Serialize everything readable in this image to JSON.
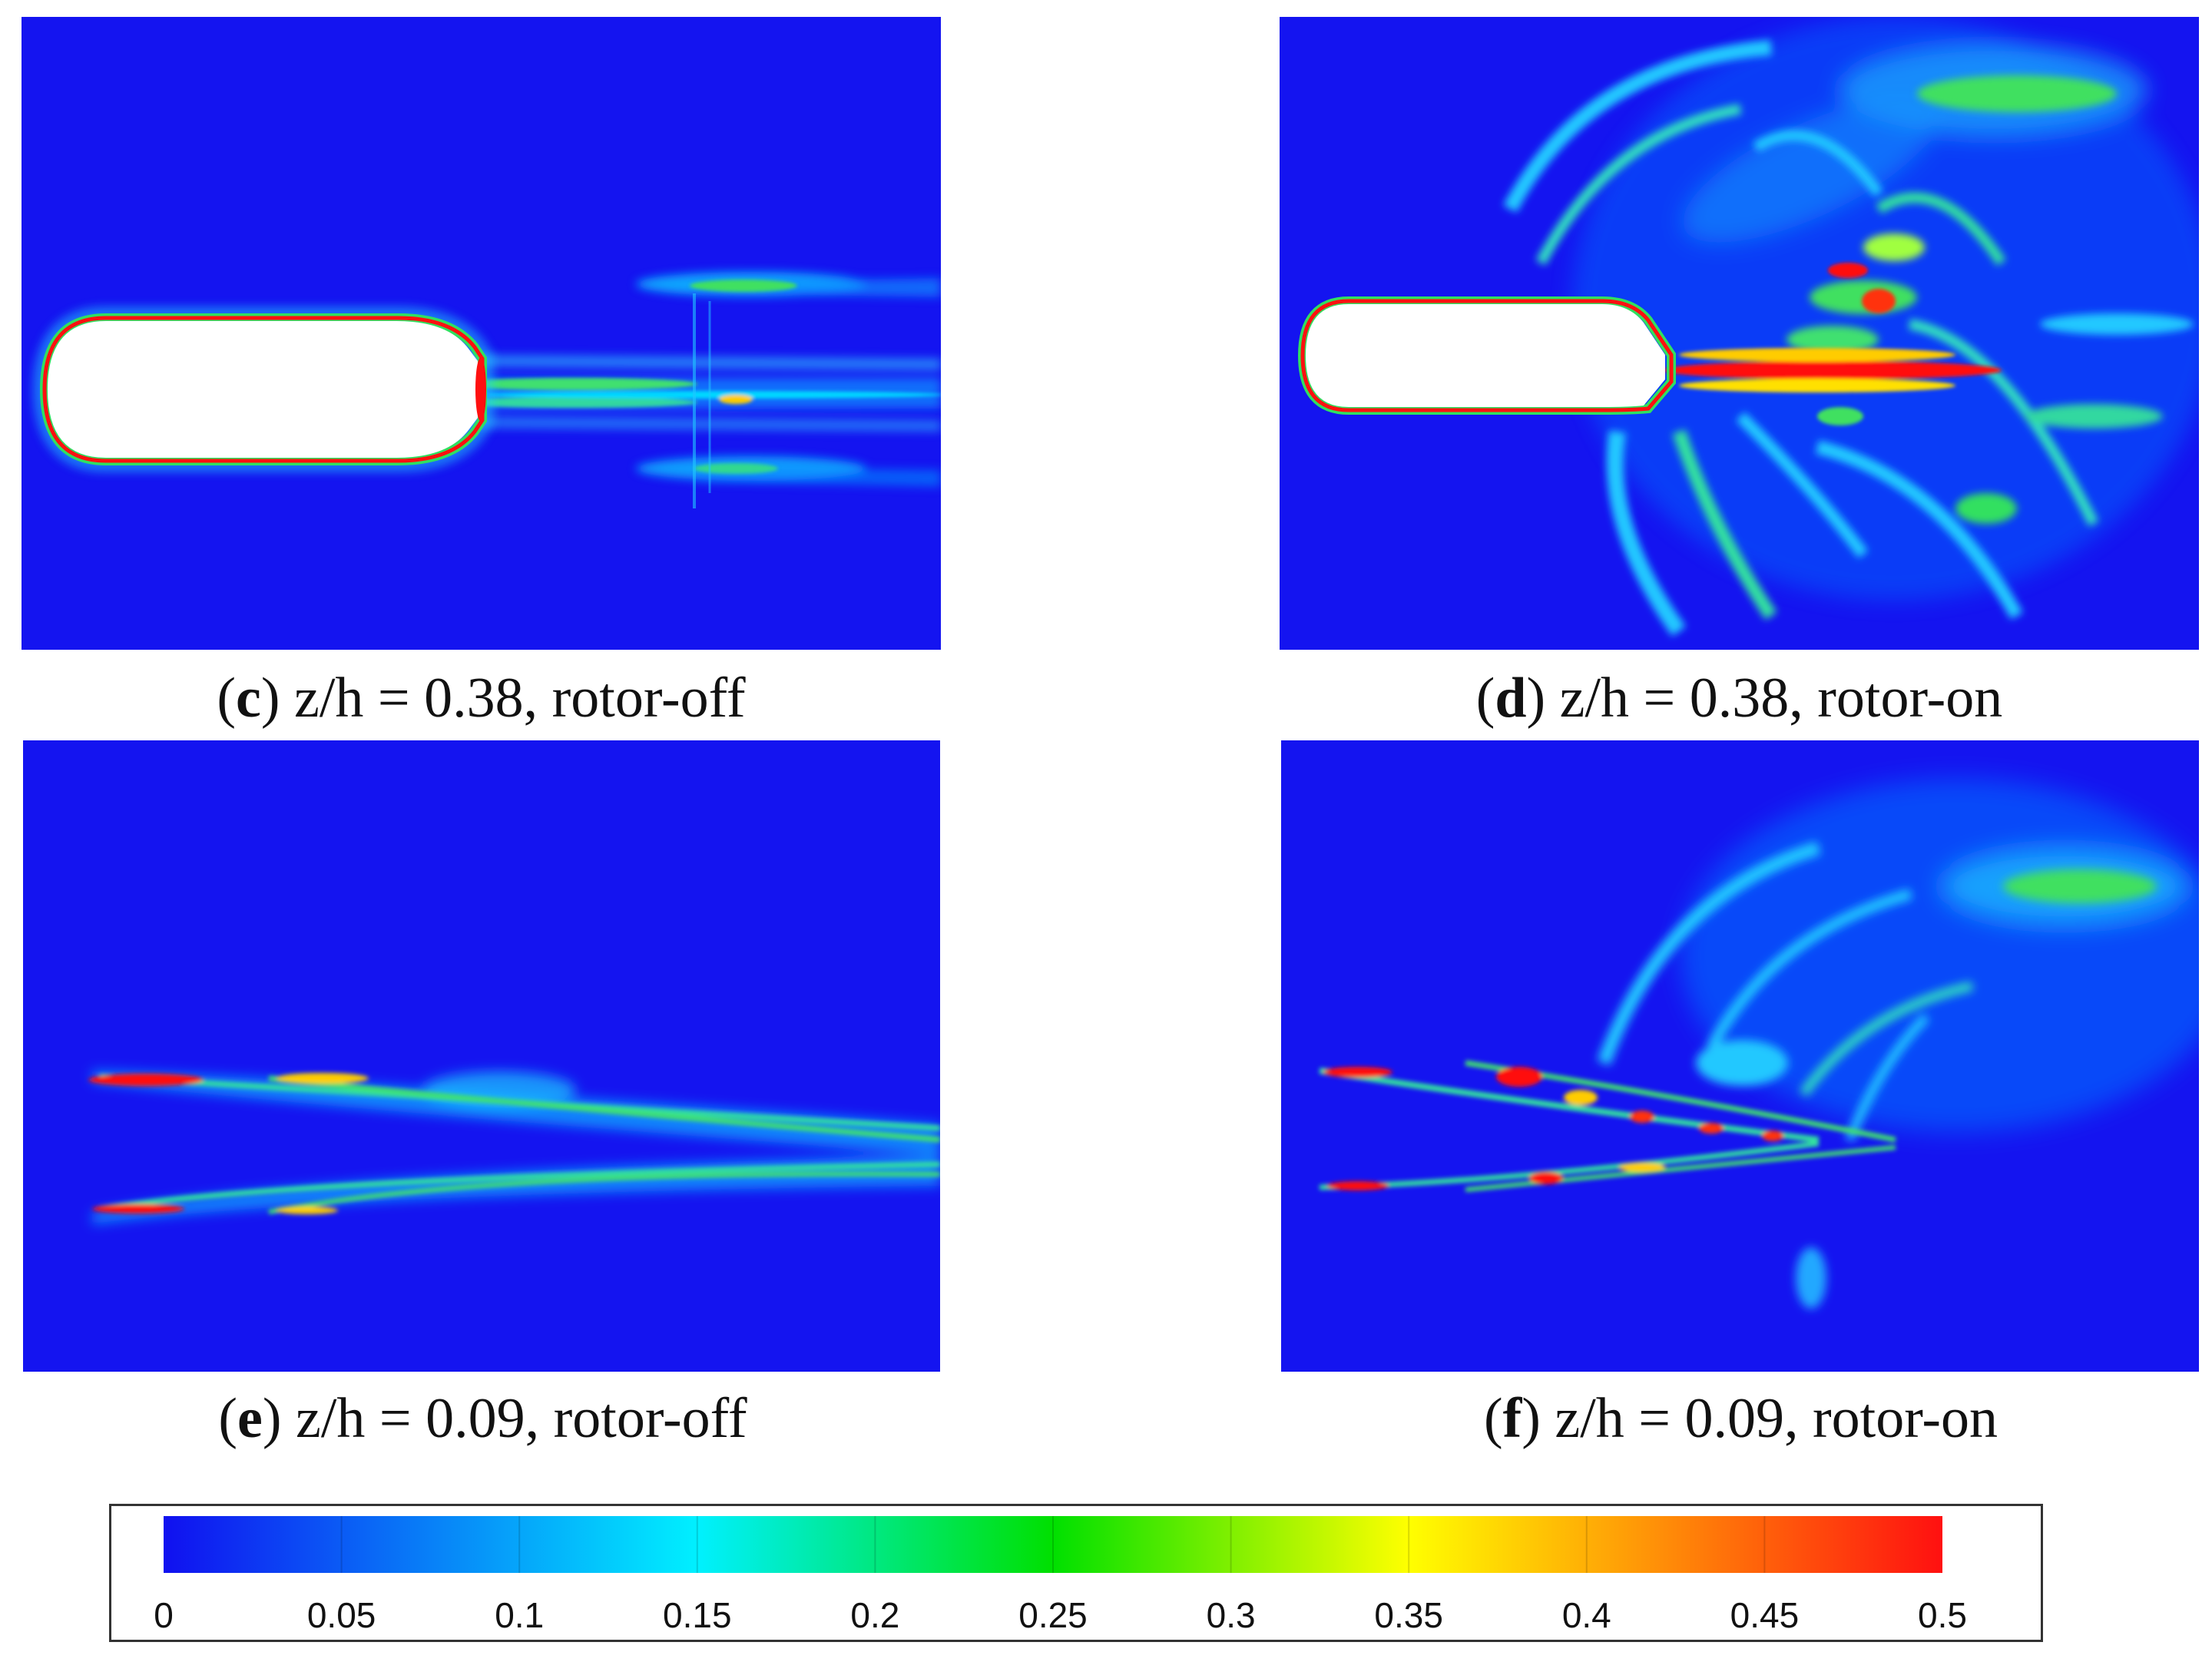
{
  "panels": [
    {
      "id": "c",
      "letter": "c",
      "text": " z/h = 0.38, rotor-off"
    },
    {
      "id": "d",
      "letter": "d",
      "text": " z/h = 0.38, rotor-on"
    },
    {
      "id": "e",
      "letter": "e",
      "text": " z/h = 0.09, rotor-off"
    },
    {
      "id": "f",
      "letter": "f",
      "text": " z/h = 0.09, rotor-on"
    }
  ],
  "colorbar": {
    "min": 0,
    "max": 0.5,
    "ticks": [
      "0",
      "0.05",
      "0.1",
      "0.15",
      "0.2",
      "0.25",
      "0.3",
      "0.35",
      "0.4",
      "0.45",
      "0.5"
    ],
    "colors": {
      "blue": "#1010f0",
      "cyan": "#00f0ff",
      "green": "#00e000",
      "yellow": "#ffff00",
      "red": "#ff1010"
    }
  }
}
